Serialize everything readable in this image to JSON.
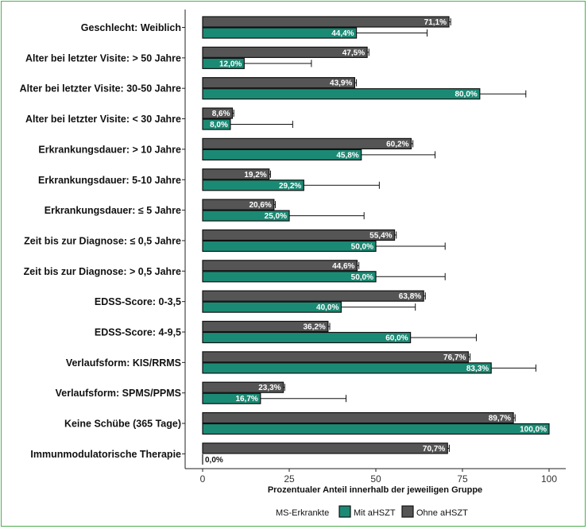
{
  "chart_data": {
    "type": "bar",
    "orientation": "horizontal",
    "title": "",
    "xlabel": "Prozentualer Anteil innerhalb der jeweiligen Gruppe",
    "ylabel": "",
    "xlim": [
      0,
      100
    ],
    "xticks": [
      0,
      25,
      50,
      75,
      100
    ],
    "categories": [
      "Geschlecht: Weiblich",
      "Alter bei letzter Visite: > 50 Jahre",
      "Alter bei letzter Visite: 30-50 Jahre",
      "Alter bei letzter Visite: < 30 Jahre",
      "Erkrankungsdauer: > 10 Jahre",
      "Erkrankungsdauer: 5-10 Jahre",
      "Erkrankungsdauer: ≤ 5 Jahre",
      "Zeit bis zur Diagnose: ≤ 0,5 Jahre",
      "Zeit bis zur Diagnose: > 0,5 Jahre",
      "EDSS-Score: 0-3,5",
      "EDSS-Score: 4-9,5",
      "Verlaufsform: KIS/RRMS",
      "Verlaufsform: SPMS/PPMS",
      "Keine Schübe (365 Tage)",
      "Immunmodulatorische Therapie"
    ],
    "series": [
      {
        "name": "Ohne aHSZT",
        "color": "#555555",
        "values": [
          71.1,
          47.5,
          43.9,
          8.6,
          60.2,
          19.2,
          20.6,
          55.4,
          44.6,
          63.8,
          36.2,
          76.7,
          23.3,
          89.7,
          70.7
        ],
        "labels": [
          "71,1%",
          "47,5%",
          "43,9%",
          "8,6%",
          "60,2%",
          "19,2%",
          "20,6%",
          "55,4%",
          "44,6%",
          "63,8%",
          "36,2%",
          "76,7%",
          "23,3%",
          "89,7%",
          "70,7%"
        ],
        "error_upper": [
          71.6,
          48.0,
          44.4,
          9.0,
          60.7,
          19.6,
          21.0,
          55.9,
          45.1,
          64.3,
          36.7,
          77.2,
          23.7,
          90.2,
          71.2
        ]
      },
      {
        "name": "Mit aHSZT",
        "color": "#1b8a74",
        "values": [
          44.4,
          12.0,
          80.0,
          8.0,
          45.8,
          29.2,
          25.0,
          50.0,
          50.0,
          40.0,
          60.0,
          83.3,
          16.7,
          100.0,
          0.0
        ],
        "labels": [
          "44,4%",
          "12,0%",
          "80,0%",
          "8,0%",
          "45,8%",
          "29,2%",
          "25,0%",
          "50,0%",
          "50,0%",
          "40,0%",
          "60,0%",
          "83,3%",
          "16,7%",
          "100,0%",
          "0,0%"
        ],
        "error_upper": [
          64.8,
          31.4,
          93.3,
          26.0,
          67.1,
          51.0,
          46.6,
          70.0,
          70.0,
          61.4,
          79.0,
          96.2,
          41.4,
          null,
          null
        ]
      }
    ],
    "legend": {
      "title": "MS-Erkrankte",
      "position": "bottom",
      "entries": [
        {
          "name": "Mit aHSZT",
          "color": "#1b8a74"
        },
        {
          "name": "Ohne aHSZT",
          "color": "#555555"
        }
      ]
    }
  }
}
